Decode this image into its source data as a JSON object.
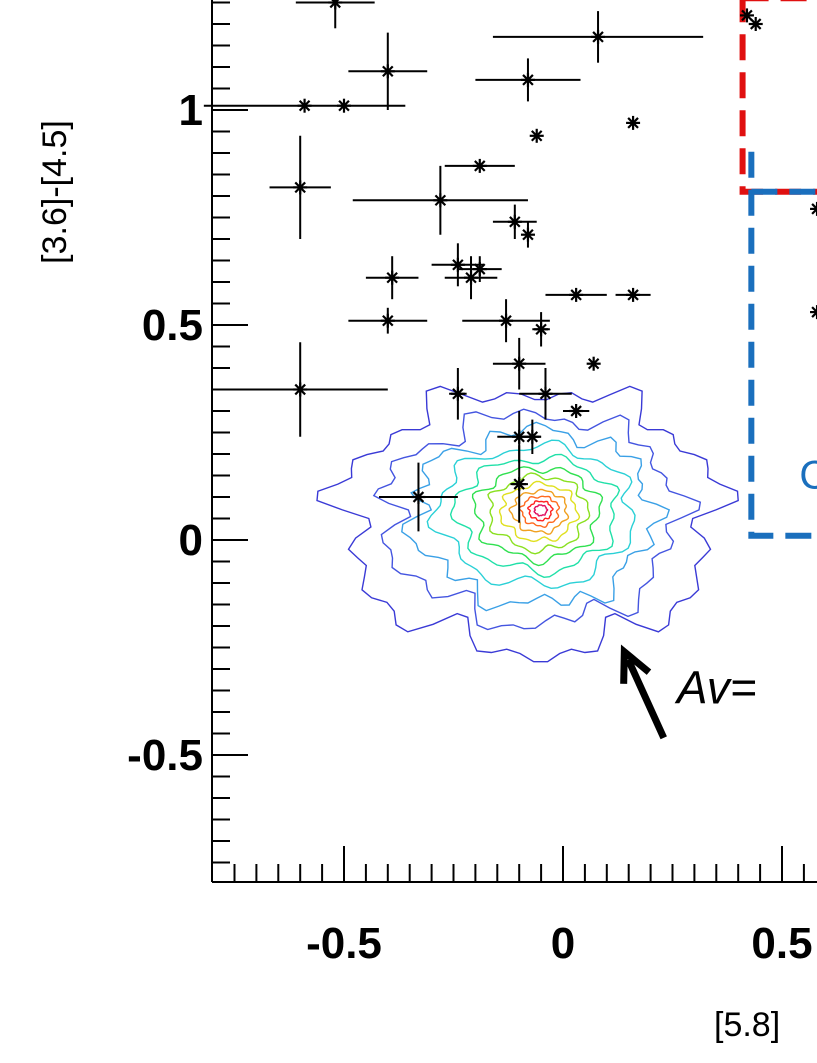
{
  "chart_data": {
    "type": "scatter",
    "title": "",
    "xlabel": "[5.8]",
    "ylabel": "[3.6]-[4.5]",
    "xlim": [
      -0.77,
      0.58
    ],
    "ylim": [
      -0.8,
      1.26
    ],
    "xticks": [
      {
        "value": -0.5,
        "label": "-0.5"
      },
      {
        "value": 0,
        "label": "0"
      },
      {
        "value": 0.5,
        "label": "0.5"
      }
    ],
    "yticks": [
      {
        "value": -0.5,
        "label": "-0.5"
      },
      {
        "value": 0,
        "label": "0"
      },
      {
        "value": 0.5,
        "label": "0.5"
      },
      {
        "value": 1,
        "label": "1"
      }
    ],
    "grid": false,
    "series": [
      {
        "color": "#000000",
        "marker": "asterisk",
        "points": [
          {
            "x": -0.52,
            "y": 1.25,
            "xerr": 0.09,
            "yerr": 0.06
          },
          {
            "x": 0.08,
            "y": 1.17,
            "xerr": 0.24,
            "yerr": 0.06
          },
          {
            "x": -0.4,
            "y": 1.09,
            "xerr": 0.09,
            "yerr": 0.09
          },
          {
            "x": -0.08,
            "y": 1.07,
            "xerr": 0.12,
            "yerr": 0.05
          },
          {
            "x": -0.5,
            "y": 1.01,
            "xerr": 0.0,
            "yerr": 0.0
          },
          {
            "x": -0.59,
            "y": 1.01,
            "xerr": 0.23,
            "yerr": 0.0
          },
          {
            "x": -0.06,
            "y": 0.94,
            "xerr": 0.0,
            "yerr": 0.0
          },
          {
            "x": 0.16,
            "y": 0.97,
            "xerr": 0.0,
            "yerr": 0.0
          },
          {
            "x": -0.19,
            "y": 0.87,
            "xerr": 0.08,
            "yerr": 0.0
          },
          {
            "x": -0.6,
            "y": 0.82,
            "xerr": 0.07,
            "yerr": 0.12
          },
          {
            "x": -0.28,
            "y": 0.79,
            "xerr": 0.2,
            "yerr": 0.08
          },
          {
            "x": -0.11,
            "y": 0.74,
            "xerr": 0.05,
            "yerr": 0.04
          },
          {
            "x": -0.08,
            "y": 0.71,
            "xerr": 0.0,
            "yerr": 0.03
          },
          {
            "x": -0.24,
            "y": 0.64,
            "xerr": 0.06,
            "yerr": 0.05
          },
          {
            "x": -0.19,
            "y": 0.63,
            "xerr": 0.05,
            "yerr": 0.03
          },
          {
            "x": -0.39,
            "y": 0.61,
            "xerr": 0.06,
            "yerr": 0.05
          },
          {
            "x": -0.21,
            "y": 0.61,
            "xerr": 0.06,
            "yerr": 0.05
          },
          {
            "x": 0.03,
            "y": 0.57,
            "xerr": 0.07,
            "yerr": 0.0
          },
          {
            "x": 0.16,
            "y": 0.57,
            "xerr": 0.04,
            "yerr": 0.0
          },
          {
            "x": -0.4,
            "y": 0.51,
            "xerr": 0.09,
            "yerr": 0.03
          },
          {
            "x": -0.13,
            "y": 0.51,
            "xerr": 0.1,
            "yerr": 0.05
          },
          {
            "x": -0.05,
            "y": 0.49,
            "xerr": 0.02,
            "yerr": 0.04
          },
          {
            "x": -0.1,
            "y": 0.41,
            "xerr": 0.06,
            "yerr": 0.06
          },
          {
            "x": 0.07,
            "y": 0.41,
            "xerr": 0.0,
            "yerr": 0.0
          },
          {
            "x": -0.6,
            "y": 0.35,
            "xerr": 0.2,
            "yerr": 0.11
          },
          {
            "x": -0.24,
            "y": 0.34,
            "xerr": 0.02,
            "yerr": 0.06
          },
          {
            "x": -0.04,
            "y": 0.34,
            "xerr": 0.06,
            "yerr": 0.06
          },
          {
            "x": 0.03,
            "y": 0.3,
            "xerr": 0.03,
            "yerr": 0.0
          },
          {
            "x": -0.1,
            "y": 0.24,
            "xerr": 0.05,
            "yerr": 0.06
          },
          {
            "x": -0.07,
            "y": 0.24,
            "xerr": 0.02,
            "yerr": 0.04
          },
          {
            "x": -0.33,
            "y": 0.1,
            "xerr": 0.09,
            "yerr": 0.08
          },
          {
            "x": -0.1,
            "y": 0.13,
            "xerr": 0.02,
            "yerr": 0.09
          },
          {
            "x": 0.42,
            "y": 1.22,
            "xerr": 0.0,
            "yerr": 0.0
          },
          {
            "x": 0.44,
            "y": 1.2,
            "xerr": 0.0,
            "yerr": 0.0
          },
          {
            "x": 0.58,
            "y": 0.77,
            "xerr": 0.0,
            "yerr": 0.0
          },
          {
            "x": 0.58,
            "y": 0.53,
            "xerr": 0.0,
            "yerr": 0.0
          }
        ]
      }
    ],
    "density_contours": {
      "center": {
        "x": -0.05,
        "y": 0.07
      },
      "colors": [
        "#3a3ad6",
        "#4455e0",
        "#3aa0e6",
        "#2ad0d6",
        "#20e0a8",
        "#30e050",
        "#8ae020",
        "#e0e020",
        "#f0a020",
        "#ff6a20",
        "#ff2020",
        "#e01060"
      ],
      "radii_x": [
        0.42,
        0.33,
        0.27,
        0.22,
        0.18,
        0.14,
        0.11,
        0.085,
        0.062,
        0.042,
        0.026,
        0.014
      ],
      "radii_y": [
        0.3,
        0.24,
        0.2,
        0.16,
        0.13,
        0.105,
        0.085,
        0.065,
        0.048,
        0.034,
        0.022,
        0.012
      ]
    },
    "regions": [
      {
        "color": "#e01010",
        "x0": 0.41,
        "y0": 0.81,
        "x1": 0.58,
        "y1": 1.26,
        "label": ""
      },
      {
        "color": "#1a6fbd",
        "x0": 0.43,
        "y0": 0.01,
        "x1": 0.58,
        "y1": 0.81,
        "label": "C"
      }
    ],
    "annotation": {
      "text": "Av=",
      "arrow_from": {
        "x": 0.23,
        "y": -0.46
      },
      "arrow_to": {
        "x": 0.14,
        "y": -0.26
      },
      "text_anchor": {
        "x": 0.26,
        "y": -0.38
      }
    }
  }
}
